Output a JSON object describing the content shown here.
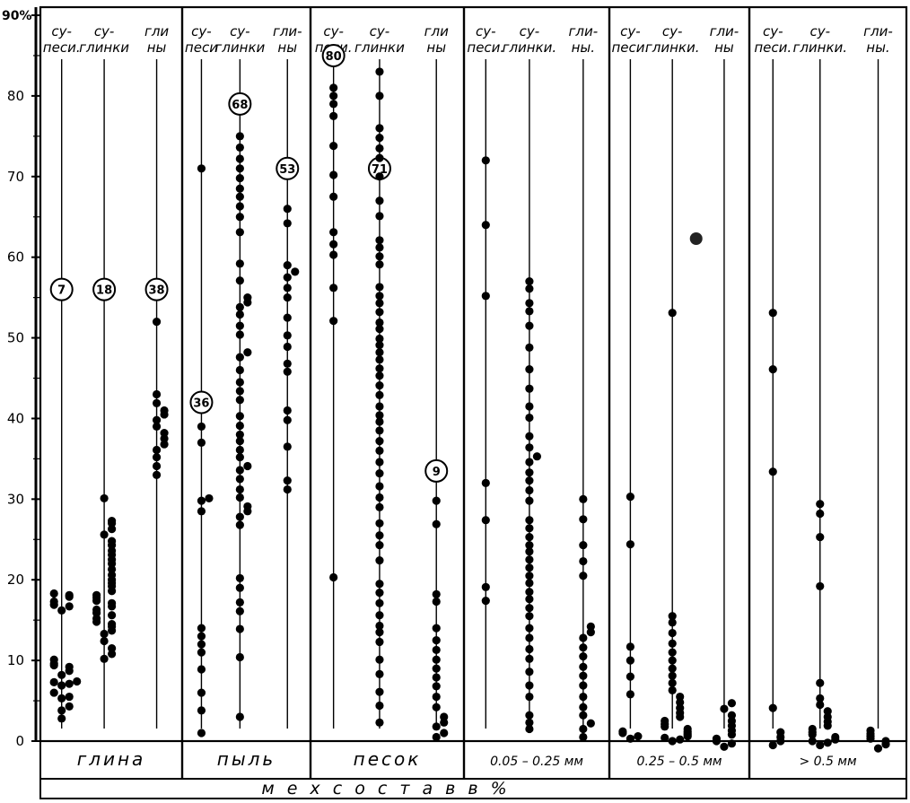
{
  "chart_data": {
    "type": "scatter",
    "y_unit_label": "90%",
    "ylim": [
      0,
      90
    ],
    "y_ticks": [
      "0",
      "10",
      "20",
      "30",
      "40",
      "50",
      "60",
      "70",
      "80"
    ],
    "footer_label": "м е х   с о с т а в     в  %",
    "groups": [
      {
        "label": "глина",
        "columns": [
          {
            "header": [
              "су-",
              "песи."
            ],
            "count": "7",
            "count_y": 56,
            "values": [
              2.8,
              3.8,
              4.3,
              5.3,
              5.5,
              6,
              6.9,
              7.1,
              7.3,
              7.4,
              8.2,
              8.7,
              9.2,
              9.4,
              9.6,
              10.1,
              16.2,
              16.7,
              16.9,
              17.3,
              17.9,
              18.1,
              18.3
            ]
          },
          {
            "header": [
              "су-",
              "глинки"
            ],
            "count": "18",
            "count_y": 56,
            "values": [
              10.2,
              10.8,
              11.5,
              12.4,
              13.3,
              13.7,
              14.2,
              14.5,
              14.8,
              15.2,
              15.6,
              15.9,
              16.3,
              16.7,
              17.1,
              17.4,
              17.8,
              18.1,
              18.6,
              19.2,
              19.6,
              20,
              20.6,
              21.3,
              22,
              22.5,
              23.1,
              23.6,
              24.3,
              24.8,
              25.6,
              26.3,
              27,
              27.3,
              30.1
            ]
          },
          {
            "header": [
              "гли",
              "ны"
            ],
            "count": "38",
            "count_y": 56,
            "values": [
              33,
              34.1,
              35.2,
              36.1,
              36.8,
              37.5,
              38.2,
              39,
              39.8,
              40.5,
              41,
              41.9,
              43,
              52
            ]
          }
        ]
      },
      {
        "label": "пыль",
        "columns": [
          {
            "header": [
              "су-",
              "песи"
            ],
            "count": "36",
            "count_y": 42,
            "values": [
              1,
              3.8,
              6,
              8.9,
              11,
              12,
              13,
              14,
              28.5,
              29.8,
              30.1,
              37,
              39,
              71
            ]
          },
          {
            "header": [
              "су-",
              "глинки"
            ],
            "count": "68",
            "count_y": 79,
            "values": [
              3,
              10.4,
              13.9,
              16.1,
              17.2,
              19,
              20.2,
              26.8,
              27.8,
              28.5,
              29.1,
              30.2,
              31.2,
              32.5,
              33.6,
              34.1,
              35.2,
              36.1,
              37.2,
              38,
              39.1,
              40.3,
              42.3,
              43.4,
              44.5,
              46,
              47.6,
              48.2,
              50.4,
              51.5,
              52.9,
              53.8,
              54.4,
              55,
              57.1,
              59.2,
              63.1,
              65,
              66.3,
              67.5,
              68.5,
              69.8,
              71,
              72.2,
              73.6,
              75
            ]
          },
          {
            "header": [
              "гли-",
              "ны"
            ],
            "count": "53",
            "count_y": 71,
            "values": [
              31.2,
              32.3,
              36.5,
              39.8,
              41,
              45.8,
              46.8,
              48.9,
              50.3,
              52.5,
              55,
              56.2,
              57.5,
              58.2,
              59,
              64.2,
              66
            ]
          }
        ]
      },
      {
        "label": "песок",
        "columns": [
          {
            "header": [
              "су-",
              "песи."
            ],
            "count": "80",
            "count_y": 85,
            "values": [
              20.3,
              52.1,
              56.2,
              60.3,
              61.6,
              63.1,
              67.5,
              70.2,
              73.8,
              77.5,
              79,
              80,
              81
            ]
          },
          {
            "header": [
              "су-",
              "глинки"
            ],
            "count": "71",
            "count_y": 71,
            "values": [
              2.3,
              4.4,
              6.1,
              8.3,
              10.1,
              12.3,
              13.5,
              14.3,
              15.6,
              17.1,
              18.4,
              19.5,
              22.4,
              24.3,
              25.5,
              27,
              29,
              30.2,
              31.6,
              33.2,
              34.6,
              36,
              37.2,
              38.5,
              39.6,
              40.4,
              41.5,
              42.9,
              44.1,
              45.3,
              46.2,
              47.3,
              48.2,
              49.1,
              49.9,
              51.1,
              51.9,
              53.2,
              54.3,
              55.2,
              56.3,
              59.1,
              60.1,
              61.2,
              62.1,
              65.1,
              67,
              70,
              72.3,
              73.5,
              74.8,
              76,
              80,
              83
            ]
          },
          {
            "header": [
              "гли",
              "ны"
            ],
            "count": "9",
            "count_y": 33.5,
            "values": [
              0.5,
              1,
              1.8,
              2.3,
              3,
              4.2,
              5.5,
              6.8,
              7.9,
              9,
              10.1,
              11.3,
              12.5,
              14,
              17.3,
              18.2,
              26.9,
              29.8
            ]
          }
        ]
      },
      {
        "label": "0.05   – 0.25 мм",
        "columns": [
          {
            "header": [
              "су-",
              "песи."
            ],
            "count": "",
            "count_y": 0,
            "values": [
              17.4,
              19.1,
              27.4,
              32,
              55.2,
              64,
              72
            ]
          },
          {
            "header": [
              "су-",
              "глинки."
            ],
            "count": "",
            "count_y": 0,
            "values": [
              1.5,
              2.3,
              3.2,
              5.5,
              6.9,
              8.6,
              10.2,
              11.4,
              12.8,
              14,
              15.5,
              16.5,
              17.6,
              18.5,
              19.6,
              20.5,
              21.5,
              22.5,
              23.5,
              24.3,
              25.3,
              26.4,
              27.4,
              29.8,
              31.1,
              32.3,
              33.3,
              34.6,
              35.3,
              36.4,
              37.8,
              40.1,
              41.5,
              43.7,
              46.1,
              48.8,
              51.5,
              53.3,
              54.3,
              56.1,
              57
            ]
          },
          {
            "header": [
              "гли-",
              "ны."
            ],
            "count": "",
            "count_y": 0,
            "values": [
              0.5,
              1.5,
              2.2,
              3.2,
              4.2,
              5.5,
              6.9,
              8.1,
              9.2,
              10.5,
              11.6,
              12.8,
              13.5,
              14.2,
              20.5,
              22.3,
              24.3,
              27.5,
              30
            ]
          }
        ]
      },
      {
        "label": "0.25   – 0.5 мм",
        "columns": [
          {
            "header": [
              "су-",
              "песи."
            ],
            "count": "",
            "count_y": 0,
            "values": [
              0.3,
              0.6,
              1,
              1.2,
              5.8,
              8,
              10,
              11.7,
              24.4,
              30.3
            ]
          },
          {
            "header": [
              "су-",
              "глинки."
            ],
            "count": "",
            "count_y": 0,
            "values": [
              0,
              0.2,
              0.4,
              0.6,
              0.8,
              1,
              1.2,
              1.5,
              1.8,
              2.1,
              2.5,
              3,
              3.5,
              4.1,
              4.8,
              5.5,
              6.3,
              7.2,
              8.1,
              9,
              10,
              11,
              12.1,
              13.4,
              14.7,
              15.5,
              53.1
            ]
          },
          {
            "header": [
              "гли-",
              "ны"
            ],
            "count": "",
            "count_y": 0,
            "values": [
              -0.7,
              -0.3,
              0,
              0.3,
              0.8,
              1.3,
              1.9,
              2.5,
              3.2,
              4,
              4.7
            ]
          }
        ]
      },
      {
        "label": "> 0.5 мм",
        "columns": [
          {
            "header": [
              "су-",
              "песи."
            ],
            "count": "",
            "count_y": 0,
            "values": [
              -0.5,
              0,
              0.5,
              1.1,
              4.1,
              33.4,
              46.1,
              53.1
            ]
          },
          {
            "header": [
              "су-",
              "глинки."
            ],
            "count": "",
            "count_y": 0,
            "values": [
              -0.5,
              -0.2,
              0,
              0.2,
              0.5,
              0.8,
              1.1,
              1.5,
              1.9,
              2.4,
              3,
              3.7,
              4.5,
              5.3,
              7.2,
              19.2,
              25.3,
              28.2,
              29.4
            ]
          },
          {
            "header": [
              "гли-",
              "ны."
            ],
            "count": "",
            "count_y": 0,
            "values": [
              -0.9,
              -0.4,
              0,
              0.3,
              0.6,
              0.9,
              1.3
            ]
          }
        ]
      }
    ],
    "stray_points": [
      {
        "group": 4,
        "offset": 0.62,
        "y": 62.3
      }
    ]
  }
}
